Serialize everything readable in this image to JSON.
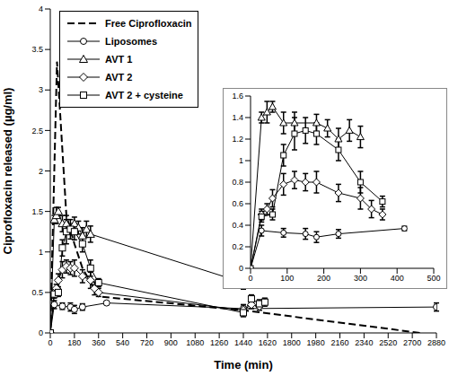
{
  "chart_data": [
    {
      "type": "line",
      "x_label": "Time (min)",
      "y_label": "Ciprofloxacin released (µg/ml)",
      "xlim": [
        0,
        2880
      ],
      "xticks": [
        0,
        180,
        360,
        540,
        720,
        900,
        1080,
        1260,
        1440,
        1620,
        1800,
        1980,
        2160,
        2340,
        2520,
        2700,
        2880
      ],
      "ylim": [
        0,
        4
      ],
      "yticks": [
        0,
        0.5,
        1,
        1.5,
        2,
        2.5,
        3,
        3.5,
        4
      ],
      "legend": "upper left",
      "series": [
        {
          "name": "Free Ciprofloxacin",
          "color": "#000000",
          "marker": "none",
          "line_style": "dashed",
          "x": [
            0,
            50,
            120,
            180,
            240,
            360,
            1440,
            2760
          ],
          "values": [
            0,
            3.35,
            1.45,
            1.1,
            0.8,
            0.45,
            0.28,
            0
          ]
        },
        {
          "name": "Liposomes",
          "color": "#000000",
          "marker": "circle",
          "line_style": "solid",
          "x": [
            0,
            30,
            90,
            150,
            180,
            240,
            420,
            1440,
            2880
          ],
          "values": [
            0,
            0.35,
            0.33,
            0.32,
            0.29,
            0.32,
            0.37,
            0.3,
            0.32
          ],
          "errors": [
            0,
            0.05,
            0.04,
            0.05,
            0.05,
            0.04,
            0.02,
            0.05,
            0.05
          ]
        },
        {
          "name": "AVT 1",
          "color": "#000000",
          "marker": "triangle",
          "line_style": "solid",
          "x": [
            0,
            30,
            45,
            60,
            90,
            120,
            180,
            210,
            240,
            270,
            300,
            1440
          ],
          "values": [
            0,
            1.4,
            1.45,
            1.5,
            1.35,
            1.35,
            1.35,
            1.3,
            1.2,
            1.28,
            1.22,
            0.62
          ],
          "errors": [
            0,
            0.05,
            0.1,
            0.05,
            0.1,
            0.1,
            0.08,
            0.08,
            0.1,
            0.1,
            0.1,
            0.08
          ]
        },
        {
          "name": "AVT 2",
          "color": "#000000",
          "marker": "diamond",
          "line_style": "solid",
          "x": [
            0,
            30,
            45,
            60,
            90,
            120,
            150,
            180,
            240,
            300,
            330,
            360,
            1440,
            1500,
            1560
          ],
          "values": [
            0,
            0.5,
            0.55,
            0.65,
            0.78,
            0.82,
            0.8,
            0.8,
            0.7,
            0.65,
            0.55,
            0.5,
            0.28,
            0.35,
            0.33
          ],
          "errors": [
            0,
            0.05,
            0.05,
            0.08,
            0.1,
            0.08,
            0.08,
            0.1,
            0.08,
            0.1,
            0.08,
            0.05,
            0.05,
            0.05,
            0.05
          ]
        },
        {
          "name": "AVT 2 + cysteine",
          "color": "#000000",
          "marker": "square",
          "line_style": "solid",
          "x": [
            0,
            30,
            60,
            90,
            120,
            150,
            180,
            240,
            300,
            360,
            1440,
            1500,
            1560,
            1600
          ],
          "values": [
            0,
            0.48,
            0.5,
            1.05,
            1.25,
            1.28,
            1.25,
            1.1,
            0.8,
            0.62,
            0.25,
            0.42,
            0.36,
            0.38
          ],
          "errors": [
            0,
            0.05,
            0.05,
            0.1,
            0.15,
            0.12,
            0.1,
            0.1,
            0.1,
            0.05,
            0.05,
            0.05,
            0.05,
            0.05
          ]
        }
      ]
    },
    {
      "type": "line",
      "xlim": [
        0,
        500
      ],
      "xticks": [
        0,
        100,
        200,
        300,
        400,
        500
      ],
      "ylim": [
        0,
        1.6
      ],
      "yticks": [
        0,
        0.2,
        0.4,
        0.6,
        0.8,
        1,
        1.2,
        1.4,
        1.6
      ],
      "series": [
        {
          "name": "Liposomes",
          "color": "#000000",
          "marker": "circle",
          "line_style": "solid",
          "x": [
            0,
            30,
            90,
            150,
            180,
            240,
            420
          ],
          "values": [
            0,
            0.35,
            0.33,
            0.32,
            0.29,
            0.32,
            0.37
          ],
          "errors": [
            0,
            0.05,
            0.04,
            0.05,
            0.05,
            0.04,
            0.02
          ]
        },
        {
          "name": "AVT 1",
          "color": "#000000",
          "marker": "triangle",
          "line_style": "solid",
          "x": [
            0,
            30,
            45,
            60,
            90,
            120,
            180,
            210,
            240,
            270,
            300
          ],
          "values": [
            0,
            1.4,
            1.45,
            1.5,
            1.35,
            1.35,
            1.35,
            1.3,
            1.2,
            1.28,
            1.22
          ],
          "errors": [
            0,
            0.05,
            0.1,
            0.05,
            0.1,
            0.1,
            0.08,
            0.08,
            0.1,
            0.1,
            0.1
          ]
        },
        {
          "name": "AVT 2",
          "color": "#000000",
          "marker": "diamond",
          "line_style": "solid",
          "x": [
            0,
            30,
            45,
            60,
            90,
            120,
            150,
            180,
            240,
            300,
            330,
            360
          ],
          "values": [
            0,
            0.5,
            0.55,
            0.65,
            0.78,
            0.82,
            0.8,
            0.8,
            0.7,
            0.65,
            0.55,
            0.5
          ],
          "errors": [
            0,
            0.05,
            0.05,
            0.08,
            0.1,
            0.08,
            0.08,
            0.1,
            0.08,
            0.1,
            0.08,
            0.05
          ]
        },
        {
          "name": "AVT 2 + cysteine",
          "color": "#000000",
          "marker": "square",
          "line_style": "solid",
          "x": [
            0,
            30,
            60,
            90,
            120,
            150,
            180,
            240,
            300,
            360
          ],
          "values": [
            0,
            0.48,
            0.5,
            1.05,
            1.25,
            1.28,
            1.25,
            1.1,
            0.8,
            0.62
          ],
          "errors": [
            0,
            0.05,
            0.05,
            0.1,
            0.15,
            0.12,
            0.1,
            0.1,
            0.1,
            0.05
          ]
        }
      ]
    }
  ]
}
